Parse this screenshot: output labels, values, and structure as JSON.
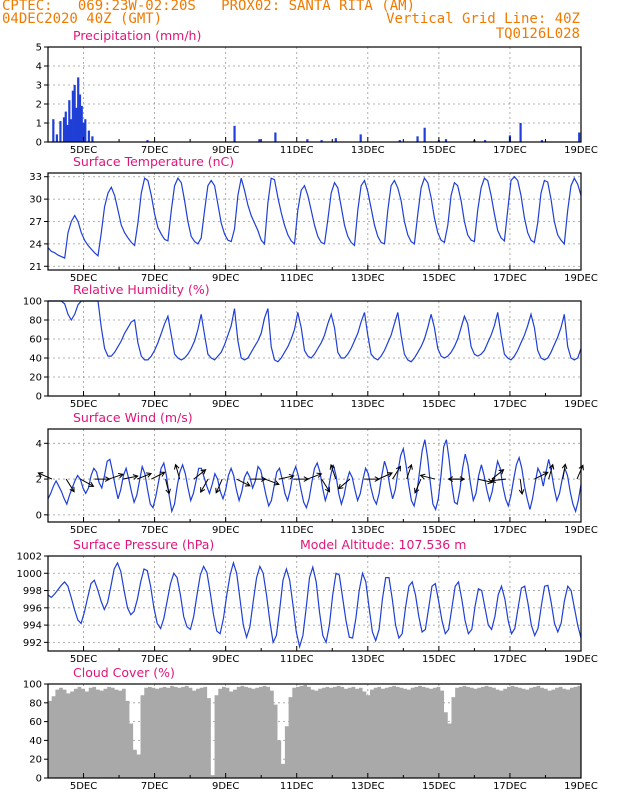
{
  "header": {
    "line1_left": "CPTEC:   069:23W-02:20S   PROX02: SANTA RITA (AM)",
    "line2_left": "04DEC2020 40Z (GMT)",
    "line2_right": "Vertical Grid Line: 40Z",
    "line3_right": "TQ0126L028"
  },
  "colors": {
    "header": "#f07a00",
    "title": "#e0157a",
    "series": "#1f3fd6",
    "grid": "#9a9a9a",
    "cloud": "#a9a9a9"
  },
  "x_ticks": [
    "5DEC",
    "7DEC",
    "9DEC",
    "11DEC",
    "13DEC",
    "15DEC",
    "17DEC",
    "19DEC"
  ],
  "chart_data": [
    {
      "id": "precip",
      "type": "bar",
      "title": "Precipitation (mm/h)",
      "ylim": [
        0,
        5
      ],
      "yticks": [
        0,
        1,
        2,
        3,
        4,
        5
      ],
      "x_range_days": [
        4.0,
        19.0
      ],
      "x": [
        4.15,
        4.25,
        4.35,
        4.45,
        4.5,
        4.55,
        4.6,
        4.65,
        4.7,
        4.75,
        4.8,
        4.85,
        4.9,
        4.95,
        5.0,
        5.05,
        5.15,
        5.25,
        6.8,
        9.25,
        9.95,
        10.4,
        11.3,
        11.7,
        12.1,
        12.8,
        13.9,
        14.4,
        14.6,
        15.0,
        15.2,
        16.0,
        16.3,
        17.0,
        17.3,
        17.9,
        18.95
      ],
      "values": [
        1.2,
        0.4,
        1.1,
        1.3,
        1.6,
        0.9,
        2.2,
        1.2,
        2.7,
        3.0,
        1.8,
        3.4,
        2.5,
        1.9,
        1.0,
        1.2,
        0.6,
        0.3,
        0.1,
        0.85,
        0.15,
        0.5,
        0.15,
        0.1,
        0.2,
        0.4,
        0.1,
        0.3,
        0.75,
        0.1,
        0.15,
        0.1,
        0.1,
        0.35,
        1.0,
        0.1,
        0.5
      ]
    },
    {
      "id": "temp",
      "type": "line",
      "title": "Surface Temperature (nC)",
      "ylim": [
        20.5,
        33.5
      ],
      "yticks": [
        21,
        24,
        27,
        30,
        33
      ],
      "x_range_days": [
        4.0,
        19.0
      ],
      "series": [
        {
          "values": [
            23.5,
            23.0,
            22.8,
            22.5,
            22.3,
            22.1,
            25.5,
            27.0,
            27.8,
            27.0,
            25.5,
            24.5,
            23.8,
            23.3,
            22.8,
            22.4,
            25.5,
            29.0,
            30.8,
            31.6,
            30.5,
            28.5,
            26.5,
            25.5,
            24.8,
            24.2,
            23.8,
            26.8,
            30.8,
            32.8,
            32.5,
            30.5,
            28.0,
            26.2,
            25.3,
            24.6,
            24.4,
            28.5,
            31.8,
            32.8,
            32.2,
            29.8,
            27.0,
            25.0,
            24.3,
            24.0,
            24.8,
            28.5,
            31.8,
            32.5,
            31.8,
            29.3,
            26.8,
            25.3,
            24.5,
            24.3,
            26.0,
            30.5,
            32.8,
            31.2,
            29.2,
            27.8,
            26.8,
            25.8,
            24.5,
            24.0,
            29.5,
            32.8,
            32.6,
            30.2,
            28.2,
            26.5,
            25.2,
            24.4,
            24.0,
            28.5,
            31.2,
            31.8,
            30.5,
            28.5,
            26.5,
            25.0,
            24.2,
            24.0,
            27.2,
            30.8,
            32.2,
            31.5,
            29.0,
            26.5,
            25.0,
            24.2,
            23.8,
            28.5,
            31.8,
            32.5,
            31.0,
            28.8,
            26.5,
            25.0,
            24.2,
            24.0,
            28.5,
            31.8,
            32.5,
            31.5,
            29.8,
            27.0,
            25.2,
            24.3,
            24.0,
            28.0,
            31.5,
            32.8,
            32.2,
            30.2,
            27.5,
            25.5,
            24.5,
            24.2,
            26.5,
            30.5,
            32.2,
            31.8,
            29.8,
            27.0,
            25.2,
            24.5,
            24.3,
            28.5,
            31.5,
            32.8,
            32.5,
            30.5,
            28.0,
            25.8,
            24.8,
            24.4,
            28.5,
            32.5,
            33.0,
            32.5,
            30.5,
            27.5,
            25.5,
            24.5,
            24.2,
            26.8,
            30.8,
            32.5,
            32.3,
            30.0,
            27.0,
            25.2,
            24.5,
            24.0,
            28.5,
            31.8,
            32.8,
            32.0,
            30.5
          ]
        }
      ]
    },
    {
      "id": "rh",
      "type": "line",
      "title": "Relative Humidity (%)",
      "ylim": [
        0,
        100
      ],
      "yticks": [
        0,
        20,
        40,
        60,
        80,
        100
      ],
      "x_range_days": [
        4.0,
        19.0
      ],
      "series": [
        {
          "values": [
            100,
            100,
            100,
            100,
            100,
            97,
            86,
            80,
            86,
            96,
            100,
            100,
            100,
            100,
            100,
            100,
            72,
            50,
            42,
            42,
            46,
            52,
            58,
            66,
            72,
            78,
            80,
            56,
            42,
            38,
            38,
            42,
            48,
            56,
            66,
            76,
            84,
            64,
            44,
            40,
            38,
            40,
            44,
            50,
            58,
            70,
            86,
            64,
            44,
            40,
            38,
            42,
            46,
            54,
            64,
            74,
            92,
            58,
            40,
            38,
            40,
            46,
            52,
            58,
            66,
            82,
            92,
            52,
            38,
            36,
            40,
            46,
            52,
            60,
            70,
            88,
            72,
            48,
            42,
            40,
            44,
            50,
            56,
            64,
            76,
            86,
            72,
            46,
            40,
            40,
            44,
            50,
            58,
            66,
            78,
            88,
            64,
            44,
            40,
            38,
            42,
            48,
            56,
            64,
            76,
            88,
            64,
            44,
            38,
            36,
            40,
            46,
            52,
            60,
            72,
            86,
            72,
            50,
            42,
            40,
            42,
            46,
            52,
            60,
            72,
            84,
            76,
            52,
            44,
            42,
            44,
            48,
            56,
            64,
            74,
            88,
            64,
            44,
            40,
            38,
            42,
            48,
            56,
            64,
            74,
            86,
            72,
            48,
            40,
            38,
            40,
            46,
            54,
            62,
            72,
            86,
            52,
            40,
            38,
            40,
            50
          ]
        }
      ]
    },
    {
      "id": "wind",
      "type": "line",
      "title": "Surface Wind (m/s)",
      "ylim": [
        -0.4,
        4.8
      ],
      "yticks": [
        0,
        2,
        4
      ],
      "x_range_days": [
        4.0,
        19.0
      ],
      "series": [
        {
          "values": [
            0.9,
            1.2,
            1.6,
            1.9,
            1.6,
            1.3,
            0.9,
            0.6,
            1.1,
            1.5,
            1.9,
            2.2,
            2.0,
            1.5,
            1.2,
            1.5,
            2.2,
            2.6,
            2.4,
            1.8,
            1.5,
            2.2,
            3.0,
            3.1,
            2.4,
            1.6,
            0.9,
            1.4,
            2.2,
            2.6,
            2.0,
            1.3,
            0.7,
            1.1,
            1.9,
            2.7,
            2.3,
            1.4,
            0.6,
            0.4,
            1.0,
            1.8,
            2.6,
            2.9,
            2.2,
            1.1,
            0.2,
            0.6,
            1.6,
            2.4,
            2.8,
            2.3,
            1.5,
            0.8,
            1.2,
            1.9,
            2.6,
            2.6,
            2.1,
            1.6,
            1.2,
            1.7,
            2.3,
            2.0,
            1.3,
            0.9,
            1.4,
            2.2,
            2.6,
            2.2,
            1.4,
            0.8,
            1.3,
            2.1,
            2.4,
            2.1,
            1.5,
            1.9,
            2.7,
            2.5,
            1.8,
            1.1,
            0.5,
            0.8,
            1.6,
            2.4,
            2.6,
            2.0,
            1.2,
            0.8,
            1.4,
            2.3,
            2.7,
            2.2,
            1.4,
            0.7,
            0.4,
            0.9,
            1.8,
            2.6,
            2.9,
            2.4,
            1.5,
            0.8,
            1.3,
            2.2,
            2.8,
            2.2,
            1.2,
            0.6,
            1.1,
            1.9,
            2.4,
            2.1,
            1.4,
            0.8,
            1.2,
            2.0,
            2.6,
            2.3,
            1.5,
            0.9,
            0.6,
            1.2,
            2.2,
            3.0,
            2.5,
            1.6,
            0.9,
            1.4,
            2.4,
            3.3,
            3.7,
            2.8,
            1.7,
            0.8,
            0.5,
            1.2,
            2.4,
            3.6,
            4.2,
            3.2,
            1.8,
            0.6,
            0.3,
            0.9,
            2.2,
            3.8,
            4.2,
            3.1,
            1.7,
            0.7,
            0.6,
            1.4,
            2.6,
            3.4,
            2.8,
            1.7,
            0.8,
            1.2,
            2.2,
            2.8,
            2.2,
            1.4,
            0.8,
            1.3,
            2.2,
            3.0,
            2.6,
            1.6,
            0.9,
            0.5,
            1.1,
            2.0,
            2.8,
            3.2,
            2.6,
            1.6,
            0.9,
            0.3,
            0.9,
            1.8,
            2.6,
            2.3,
            1.6,
            2.4,
            3.1,
            2.4,
            1.5,
            0.8,
            1.2,
            2.0,
            2.6,
            2.2,
            1.3,
            0.6,
            0.2,
            0.8,
            1.7
          ]
        }
      ],
      "vectors_u": [
        -0.9,
        0.5,
        0.9,
        0.8,
        0.9,
        1.0,
        1.0,
        0.6,
        0.2,
        -0.2,
        0.5,
        -0.4,
        -0.4,
        0.6,
        0.9,
        0.8,
        0.9,
        0.6,
        0.8,
        0.5,
        -0.2,
        -0.6,
        0.7,
        0.9,
        0.5,
        0.2,
        -0.3,
        -0.4,
        0.2,
        -0.8,
        0.9,
        0.5,
        -0.9,
        0.1,
        0.6,
        0.2,
        0.1,
        0.3
      ],
      "vectors_v": [
        0.4,
        -0.8,
        -0.5,
        0.0,
        0.3,
        0.2,
        0.4,
        0.3,
        -0.8,
        0.7,
        0.4,
        -0.7,
        -0.9,
        -0.3,
        0.0,
        -0.3,
        0.2,
        0.0,
        0.3,
        -0.8,
        0.6,
        -0.5,
        0.0,
        0.4,
        0.8,
        0.6,
        -0.7,
        0.1,
        0.0,
        0.0,
        -0.2,
        0.4,
        -0.1,
        -0.8,
        0.3,
        0.7,
        0.6,
        0.7
      ]
    },
    {
      "id": "pres",
      "type": "line",
      "title": "Surface Pressure (hPa)",
      "annotation": "Model Altitude: 107.536 m",
      "ylim": [
        991,
        1002
      ],
      "yticks": [
        992,
        994,
        996,
        998,
        1000,
        1002
      ],
      "x_range_days": [
        4.0,
        19.0
      ],
      "series": [
        {
          "values": [
            997.5,
            997.2,
            997.6,
            998.1,
            998.6,
            999.0,
            998.5,
            997.2,
            995.8,
            994.6,
            994.2,
            995.5,
            997.2,
            998.8,
            999.2,
            998.1,
            996.8,
            995.8,
            996.6,
            998.5,
            1000.5,
            1001.2,
            1000.2,
            998.0,
            996.0,
            995.2,
            995.6,
            997.0,
            999.0,
            1000.5,
            1000.3,
            998.5,
            996.0,
            994.2,
            993.6,
            994.8,
            996.8,
            998.8,
            1000.0,
            999.5,
            997.5,
            995.0,
            993.8,
            993.5,
            995.0,
            997.5,
            999.8,
            1000.8,
            1000.1,
            997.8,
            995.2,
            993.3,
            993.0,
            994.8,
            997.5,
            999.8,
            1001.2,
            1000.0,
            997.0,
            994.0,
            992.6,
            993.8,
            996.8,
            999.5,
            1000.8,
            1000.0,
            997.5,
            994.5,
            992.0,
            992.8,
            995.8,
            999.2,
            1000.5,
            999.2,
            996.3,
            993.2,
            991.5,
            992.8,
            996.0,
            999.5,
            1000.7,
            999.0,
            995.5,
            992.8,
            992.0,
            994.0,
            997.5,
            1000.0,
            999.8,
            997.2,
            994.5,
            992.6,
            992.5,
            994.8,
            998.0,
            1000.0,
            999.0,
            996.0,
            993.2,
            992.2,
            993.5,
            997.0,
            999.5,
            999.5,
            997.0,
            994.0,
            992.5,
            993.0,
            996.0,
            998.5,
            999.0,
            997.5,
            995.0,
            993.2,
            993.5,
            996.0,
            998.5,
            998.8,
            996.8,
            994.5,
            993.0,
            993.5,
            996.0,
            998.5,
            999.0,
            997.0,
            994.5,
            993.0,
            993.5,
            996.2,
            998.2,
            998.0,
            996.0,
            994.0,
            993.5,
            995.0,
            997.5,
            998.5,
            997.0,
            994.5,
            993.0,
            993.6,
            996.0,
            998.3,
            998.5,
            996.5,
            994.0,
            992.8,
            993.6,
            996.2,
            998.5,
            998.6,
            996.6,
            994.2,
            993.2,
            994.2,
            996.8,
            998.5,
            998.0,
            996.0,
            994.0,
            992.5
          ]
        }
      ]
    },
    {
      "id": "cloud",
      "type": "area",
      "title": "Cloud Cover (%)",
      "ylim": [
        0,
        100
      ],
      "yticks": [
        0,
        20,
        40,
        60,
        80,
        100
      ],
      "x_range_days": [
        4.0,
        19.0
      ],
      "series": [
        {
          "values": [
            82,
            87,
            94,
            96,
            94,
            90,
            92,
            95,
            97,
            95,
            92,
            96,
            97,
            94,
            93,
            95,
            97,
            96,
            94,
            93,
            95,
            82,
            58,
            30,
            25,
            88,
            96,
            97,
            96,
            95,
            96,
            97,
            96,
            98,
            97,
            96,
            97,
            98,
            96,
            93,
            95,
            96,
            97,
            85,
            3,
            88,
            95,
            97,
            96,
            92,
            94,
            97,
            98,
            97,
            96,
            95,
            96,
            97,
            98,
            97,
            93,
            78,
            40,
            15,
            55,
            86,
            96,
            97,
            98,
            99,
            97,
            94,
            93,
            95,
            96,
            97,
            96,
            97,
            98,
            97,
            95,
            96,
            97,
            95,
            96,
            92,
            88,
            94,
            96,
            97,
            95,
            96,
            97,
            98,
            97,
            96,
            95,
            94,
            96,
            97,
            98,
            97,
            96,
            95,
            96,
            97,
            93,
            70,
            58,
            86,
            96,
            97,
            98,
            97,
            96,
            95,
            96,
            97,
            98,
            97,
            96,
            94,
            93,
            95,
            97,
            98,
            97,
            96,
            95,
            94,
            96,
            97,
            98,
            96,
            95,
            93,
            94,
            96,
            97,
            95,
            94,
            96,
            97,
            98
          ]
        }
      ]
    }
  ]
}
